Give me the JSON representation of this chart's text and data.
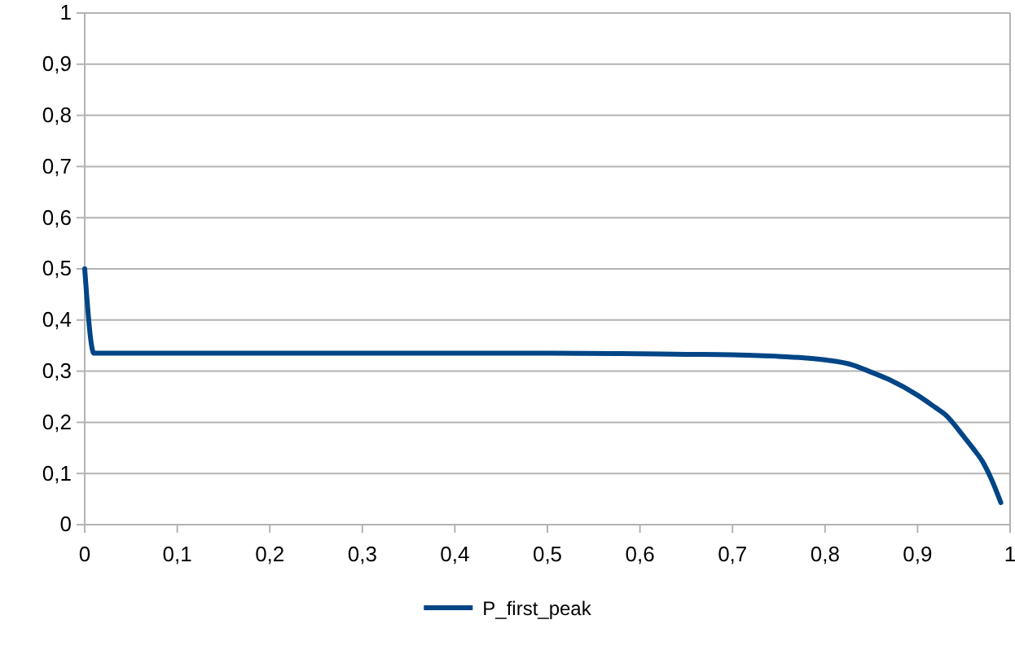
{
  "chart_data": {
    "type": "line",
    "x": [
      0,
      0.01,
      0.1,
      0.2,
      0.3,
      0.4,
      0.5,
      0.6,
      0.65,
      0.7,
      0.75,
      0.8,
      0.83,
      0.85,
      0.87,
      0.9,
      0.92,
      0.93,
      0.95,
      0.96,
      0.97,
      0.98,
      0.99
    ],
    "series": [
      {
        "name": "P_first_peak",
        "color": "#004586",
        "values": [
          0.5,
          0.335,
          0.335,
          0.335,
          0.335,
          0.335,
          0.335,
          0.334,
          0.333,
          0.332,
          0.329,
          0.322,
          0.312,
          0.298,
          0.283,
          0.253,
          0.228,
          0.215,
          0.172,
          0.149,
          0.124,
          0.088,
          0.043
        ]
      }
    ],
    "xlim": [
      0,
      1
    ],
    "ylim": [
      0,
      1
    ],
    "xticks": [
      0,
      {
        "value": 0.1,
        "label": "0,1"
      },
      {
        "value": 0.2,
        "label": "0,2"
      },
      {
        "value": 0.3,
        "label": "0,3"
      },
      {
        "value": 0.4,
        "label": "0,4"
      },
      {
        "value": 0.5,
        "label": "0,5"
      },
      {
        "value": 0.6,
        "label": "0,6"
      },
      {
        "value": 0.7,
        "label": "0,7"
      },
      {
        "value": 0.8,
        "label": "0,8"
      },
      {
        "value": 0.9,
        "label": "0,9"
      },
      1
    ],
    "yticks": [
      0,
      {
        "value": 0.1,
        "label": "0,1"
      },
      {
        "value": 0.2,
        "label": "0,2"
      },
      {
        "value": 0.3,
        "label": "0,3"
      },
      {
        "value": 0.4,
        "label": "0,4"
      },
      {
        "value": 0.5,
        "label": "0,5"
      },
      {
        "value": 0.6,
        "label": "0,6"
      },
      {
        "value": 0.7,
        "label": "0,7"
      },
      {
        "value": 0.8,
        "label": "0,8"
      },
      {
        "value": 0.9,
        "label": "0,9"
      },
      1
    ],
    "grid": "y",
    "legend": "bottom",
    "marker": "none",
    "line_style": "solid"
  }
}
